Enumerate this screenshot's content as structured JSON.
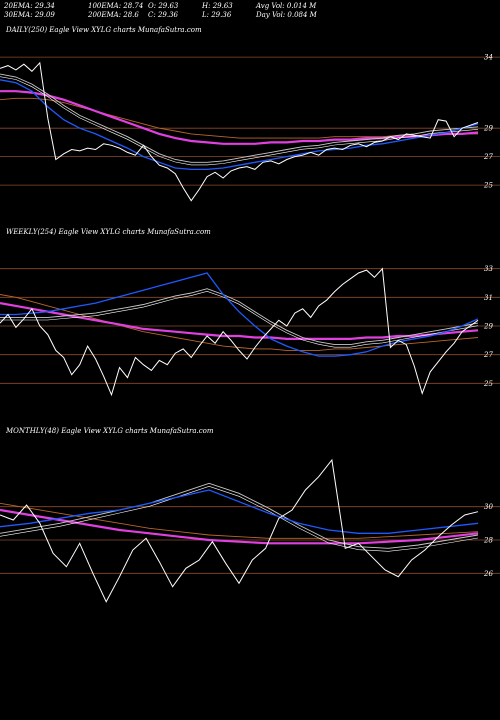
{
  "header": {
    "row1": [
      {
        "name": "ema20",
        "text": "20EMA: 29.34"
      },
      {
        "name": "ema100",
        "text": "100EMA: 28.74"
      },
      {
        "name": "open",
        "text": "O: 29.63"
      },
      {
        "name": "high",
        "text": "H: 29.63"
      },
      {
        "name": "avgvol",
        "text": "Avg Vol: 0.014  M"
      }
    ],
    "row2": [
      {
        "name": "ema30",
        "text": "30EMA: 29.09"
      },
      {
        "name": "ema200",
        "text": "200EMA: 28.6"
      },
      {
        "name": "close",
        "text": "C: 29.36"
      },
      {
        "name": "low",
        "text": "L: 29.36"
      },
      {
        "name": "dayvol",
        "text": "Day Vol: 0.084  M"
      }
    ]
  },
  "colors": {
    "price": "#ffffff",
    "ema_fast": "#1e5aff",
    "ema_slow": "#e040e0",
    "ema_mid": "#c8c8c8",
    "ema_long": "#b8662a",
    "hline": "#8a4a2a"
  },
  "chart_data": [
    {
      "type": "line",
      "title": "DAILY(250) Eagle   View  XYLG charts MunafaSutra.com",
      "ylim": [
        23.6,
        35.2
      ],
      "yticks": [
        {
          "label": "34",
          "value": 34.0
        },
        {
          "label": "29",
          "value": 29.0
        },
        {
          "label": "27",
          "value": 27.0
        },
        {
          "label": "25",
          "value": 25.0
        }
      ],
      "hlines": [
        34.0,
        29.0,
        27.0,
        25.0
      ],
      "price": [
        33.2,
        33.4,
        33.1,
        33.5,
        33.0,
        33.6,
        29.7,
        26.8,
        27.2,
        27.5,
        27.4,
        27.6,
        27.5,
        27.9,
        27.8,
        27.6,
        27.3,
        27.1,
        27.8,
        27.0,
        26.4,
        26.2,
        25.8,
        24.8,
        23.9,
        24.7,
        25.6,
        25.9,
        25.5,
        26.0,
        26.2,
        26.3,
        26.1,
        26.6,
        26.7,
        26.5,
        26.8,
        27.0,
        27.1,
        27.3,
        27.1,
        27.5,
        27.6,
        27.5,
        27.8,
        27.9,
        27.7,
        28.0,
        28.1,
        28.4,
        28.2,
        28.6,
        28.5,
        28.4,
        28.3,
        29.6,
        29.5,
        28.4,
        29.0,
        29.2,
        29.4
      ],
      "series": [
        {
          "name": "20EMA",
          "colorKey": "ema_fast",
          "values": [
            32.4,
            32.2,
            31.6,
            30.5,
            29.6,
            29.0,
            28.6,
            28.1,
            27.6,
            27.0,
            26.6,
            26.2,
            26.1,
            26.1,
            26.2,
            26.4,
            26.6,
            26.8,
            27.0,
            27.2,
            27.4,
            27.5,
            27.6,
            27.8,
            27.9,
            28.1,
            28.3,
            28.5,
            28.7,
            29.0,
            29.3
          ]
        },
        {
          "name": "30EMA",
          "colorKey": "ema_mid",
          "values": [
            32.8,
            32.6,
            32.1,
            31.4,
            30.6,
            29.9,
            29.4,
            28.9,
            28.4,
            27.8,
            27.2,
            26.8,
            26.6,
            26.6,
            26.7,
            26.9,
            27.1,
            27.3,
            27.5,
            27.7,
            27.8,
            28.0,
            28.1,
            28.2,
            28.3,
            28.5,
            28.6,
            28.8,
            28.9,
            29.0,
            29.1
          ]
        },
        {
          "name": "100EMA",
          "colorKey": "ema_slow",
          "values": [
            31.6,
            31.6,
            31.5,
            31.3,
            31.0,
            30.6,
            30.2,
            29.8,
            29.4,
            29.0,
            28.6,
            28.3,
            28.1,
            28.0,
            27.9,
            27.9,
            27.9,
            28.0,
            28.0,
            28.1,
            28.1,
            28.2,
            28.2,
            28.3,
            28.3,
            28.4,
            28.4,
            28.5,
            28.6,
            28.6,
            28.7
          ]
        },
        {
          "name": "200EMA",
          "colorKey": "ema_long",
          "values": [
            31.0,
            31.1,
            31.1,
            31.0,
            30.8,
            30.5,
            30.2,
            29.9,
            29.6,
            29.3,
            29.0,
            28.8,
            28.6,
            28.5,
            28.4,
            28.3,
            28.3,
            28.3,
            28.3,
            28.3,
            28.3,
            28.4,
            28.4,
            28.4,
            28.4,
            28.5,
            28.5,
            28.5,
            28.6,
            28.6,
            28.6
          ]
        }
      ]
    },
    {
      "type": "line",
      "title": "WEEKLY(254) Eagle   View  XYLG charts MunafaSutra.com",
      "ylim": [
        23.0,
        35.0
      ],
      "yticks": [
        {
          "label": "33",
          "value": 33.0
        },
        {
          "label": "31",
          "value": 31.0
        },
        {
          "label": "29",
          "value": 29.0
        },
        {
          "label": "27",
          "value": 27.0
        },
        {
          "label": "25",
          "value": 25.0
        }
      ],
      "hlines": [
        33.0,
        31.0,
        29.0,
        27.0,
        25.0
      ],
      "price": [
        29.2,
        29.8,
        28.9,
        29.5,
        30.2,
        29.0,
        28.4,
        27.3,
        26.8,
        25.6,
        26.3,
        27.6,
        26.7,
        25.5,
        24.2,
        26.1,
        25.4,
        26.8,
        26.3,
        25.9,
        26.6,
        26.3,
        27.1,
        27.4,
        26.8,
        27.6,
        28.3,
        27.8,
        28.6,
        28.0,
        27.3,
        26.7,
        27.5,
        28.2,
        28.8,
        29.4,
        29.0,
        29.9,
        30.2,
        29.6,
        30.4,
        30.8,
        31.4,
        31.9,
        32.3,
        32.7,
        32.9,
        32.4,
        33.0,
        27.5,
        28.0,
        27.7,
        26.2,
        24.3,
        25.8,
        26.5,
        27.2,
        27.8,
        28.6,
        29.0,
        29.4
      ],
      "series": [
        {
          "name": "20EMA",
          "colorKey": "ema_fast",
          "values": [
            29.8,
            29.8,
            29.9,
            30.0,
            30.2,
            30.4,
            30.6,
            30.9,
            31.2,
            31.5,
            31.8,
            32.1,
            32.4,
            32.7,
            31.2,
            30.0,
            29.0,
            28.1,
            27.6,
            27.2,
            26.9,
            26.9,
            27.0,
            27.2,
            27.6,
            27.9,
            28.1,
            28.3,
            28.6,
            29.0,
            29.5
          ]
        },
        {
          "name": "30EMA",
          "colorKey": "ema_mid",
          "values": [
            29.6,
            29.6,
            29.6,
            29.6,
            29.7,
            29.8,
            29.9,
            30.1,
            30.3,
            30.5,
            30.8,
            31.1,
            31.3,
            31.6,
            31.2,
            30.7,
            30.0,
            29.3,
            28.7,
            28.2,
            27.9,
            27.7,
            27.7,
            27.9,
            28.0,
            28.2,
            28.4,
            28.6,
            28.8,
            29.0,
            29.2
          ]
        },
        {
          "name": "100EMA",
          "colorKey": "ema_slow",
          "values": [
            30.6,
            30.4,
            30.2,
            30.0,
            29.8,
            29.6,
            29.4,
            29.2,
            29.0,
            28.8,
            28.7,
            28.6,
            28.5,
            28.4,
            28.3,
            28.3,
            28.2,
            28.2,
            28.1,
            28.1,
            28.1,
            28.1,
            28.1,
            28.2,
            28.2,
            28.3,
            28.3,
            28.4,
            28.5,
            28.6,
            28.7
          ]
        },
        {
          "name": "200EMA",
          "colorKey": "ema_long",
          "values": [
            31.2,
            31.0,
            30.7,
            30.4,
            30.1,
            29.8,
            29.5,
            29.2,
            28.9,
            28.6,
            28.4,
            28.2,
            28.0,
            27.8,
            27.6,
            27.5,
            27.4,
            27.4,
            27.3,
            27.3,
            27.3,
            27.4,
            27.4,
            27.5,
            27.6,
            27.7,
            27.8,
            27.9,
            28.0,
            28.1,
            28.2
          ]
        }
      ]
    },
    {
      "type": "line",
      "title": "MONTHLY(48) Eagle   View  XYLG charts MunafaSutra.com",
      "ylim": [
        22.0,
        34.0
      ],
      "yticks": [
        {
          "label": "30",
          "value": 30.0
        },
        {
          "label": "28",
          "value": 28.0
        },
        {
          "label": "26",
          "value": 26.0
        }
      ],
      "hlines": [
        30.0,
        28.0,
        26.0
      ],
      "price": [
        29.5,
        29.2,
        30.1,
        29.0,
        27.2,
        26.4,
        27.8,
        26.0,
        24.3,
        25.8,
        27.4,
        28.1,
        26.7,
        25.2,
        26.3,
        26.8,
        27.9,
        26.6,
        25.4,
        26.8,
        27.5,
        29.3,
        29.8,
        31.0,
        31.8,
        32.8,
        27.5,
        27.8,
        27.0,
        26.2,
        25.8,
        26.8,
        27.4,
        28.2,
        28.9,
        29.5,
        29.7
      ],
      "series": [
        {
          "name": "20EMA",
          "colorKey": "ema_fast",
          "values": [
            28.8,
            29.0,
            29.3,
            29.6,
            29.8,
            30.2,
            30.6,
            31.0,
            30.3,
            29.6,
            29.0,
            28.6,
            28.4,
            28.4,
            28.6,
            28.8,
            29.0
          ]
        },
        {
          "name": "30EMA",
          "colorKey": "ema_mid",
          "values": [
            28.4,
            28.7,
            29.0,
            29.4,
            29.8,
            30.2,
            30.8,
            31.4,
            30.8,
            29.9,
            28.9,
            28.0,
            27.6,
            27.5,
            27.7,
            28.0,
            28.3
          ]
        },
        {
          "name": "100EMA",
          "colorKey": "ema_slow",
          "values": [
            29.8,
            29.5,
            29.2,
            28.9,
            28.6,
            28.4,
            28.2,
            28.0,
            27.9,
            27.8,
            27.8,
            27.8,
            27.8,
            27.9,
            28.0,
            28.2,
            28.4
          ]
        },
        {
          "name": "200EMA",
          "colorKey": "ema_long",
          "values": [
            30.2,
            29.9,
            29.6,
            29.3,
            29.0,
            28.7,
            28.5,
            28.3,
            28.2,
            28.1,
            28.1,
            28.1,
            28.1,
            28.2,
            28.3,
            28.4,
            28.5
          ]
        }
      ]
    }
  ]
}
